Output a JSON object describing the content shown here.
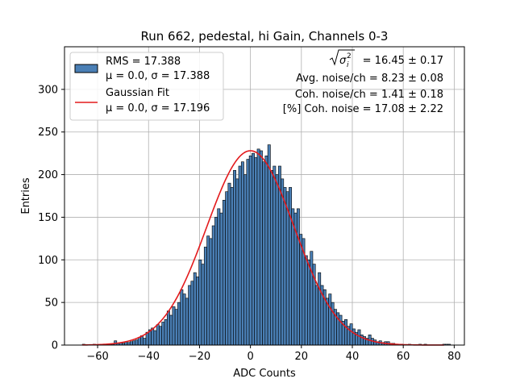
{
  "chart_data": {
    "type": "bar",
    "title": "Run 662, pedestal, hi Gain, Channels 0-3",
    "xlabel": "ADC Counts",
    "ylabel": "Entries",
    "xlim": [
      -73,
      84
    ],
    "ylim": [
      0,
      350
    ],
    "xticks": [
      -60,
      -40,
      -20,
      0,
      20,
      40,
      60,
      80
    ],
    "yticks": [
      0,
      50,
      100,
      150,
      200,
      250,
      300
    ],
    "xtick_labels": [
      "−60",
      "−40",
      "−20",
      "0",
      "20",
      "40",
      "60",
      "80"
    ],
    "ytick_labels": [
      "0",
      "50",
      "100",
      "150",
      "200",
      "250",
      "300"
    ],
    "grid": true,
    "legend_position": "top-left",
    "histogram": {
      "name": "RMS = 17.388",
      "stats_label": "μ = 0.0, σ = 17.388",
      "color": "#4a7fb5",
      "edge_color": "#000000",
      "bin_start": -66,
      "bin_width": 1.04,
      "values": [
        1,
        0,
        0,
        0,
        1,
        0,
        0,
        0,
        1,
        0,
        1,
        1,
        5,
        2,
        3,
        2,
        4,
        3,
        4,
        5,
        6,
        9,
        11,
        8,
        15,
        18,
        20,
        17,
        24,
        22,
        27,
        30,
        40,
        35,
        45,
        42,
        50,
        65,
        60,
        55,
        70,
        75,
        85,
        80,
        100,
        95,
        115,
        128,
        125,
        140,
        150,
        160,
        155,
        170,
        180,
        190,
        185,
        205,
        195,
        210,
        215,
        200,
        218,
        222,
        225,
        220,
        230,
        228,
        215,
        222,
        235,
        205,
        210,
        200,
        210,
        195,
        185,
        180,
        185,
        160,
        155,
        160,
        130,
        125,
        105,
        100,
        110,
        95,
        70,
        85,
        70,
        65,
        55,
        60,
        50,
        42,
        38,
        35,
        28,
        30,
        22,
        25,
        19,
        15,
        18,
        12,
        10,
        8,
        12,
        8,
        6,
        4,
        5,
        3,
        4,
        4,
        2,
        2,
        1,
        1,
        1,
        0,
        0,
        1,
        0,
        0,
        0,
        1,
        0,
        1,
        0,
        0,
        0,
        0,
        0,
        0,
        1,
        1,
        1,
        0
      ]
    },
    "fit": {
      "name": "Gaussian Fit",
      "stats_label": "μ = 0.0, σ = 17.196",
      "color": "#e31a1c",
      "mu": 0.0,
      "sigma": 17.196,
      "amplitude": 228,
      "x_range": [
        -66,
        76
      ]
    },
    "annotations": {
      "line1_value": " = 16.45 ± 0.17",
      "line1_symbol": "σ",
      "line1_sub": "i",
      "line1_sup": "2",
      "line2": "Avg. noise/ch = 8.23 ± 0.08",
      "line3": "Coh. noise/ch = 1.41 ± 0.18",
      "line4": "[%] Coh. noise = 17.08 ± 2.22"
    }
  }
}
